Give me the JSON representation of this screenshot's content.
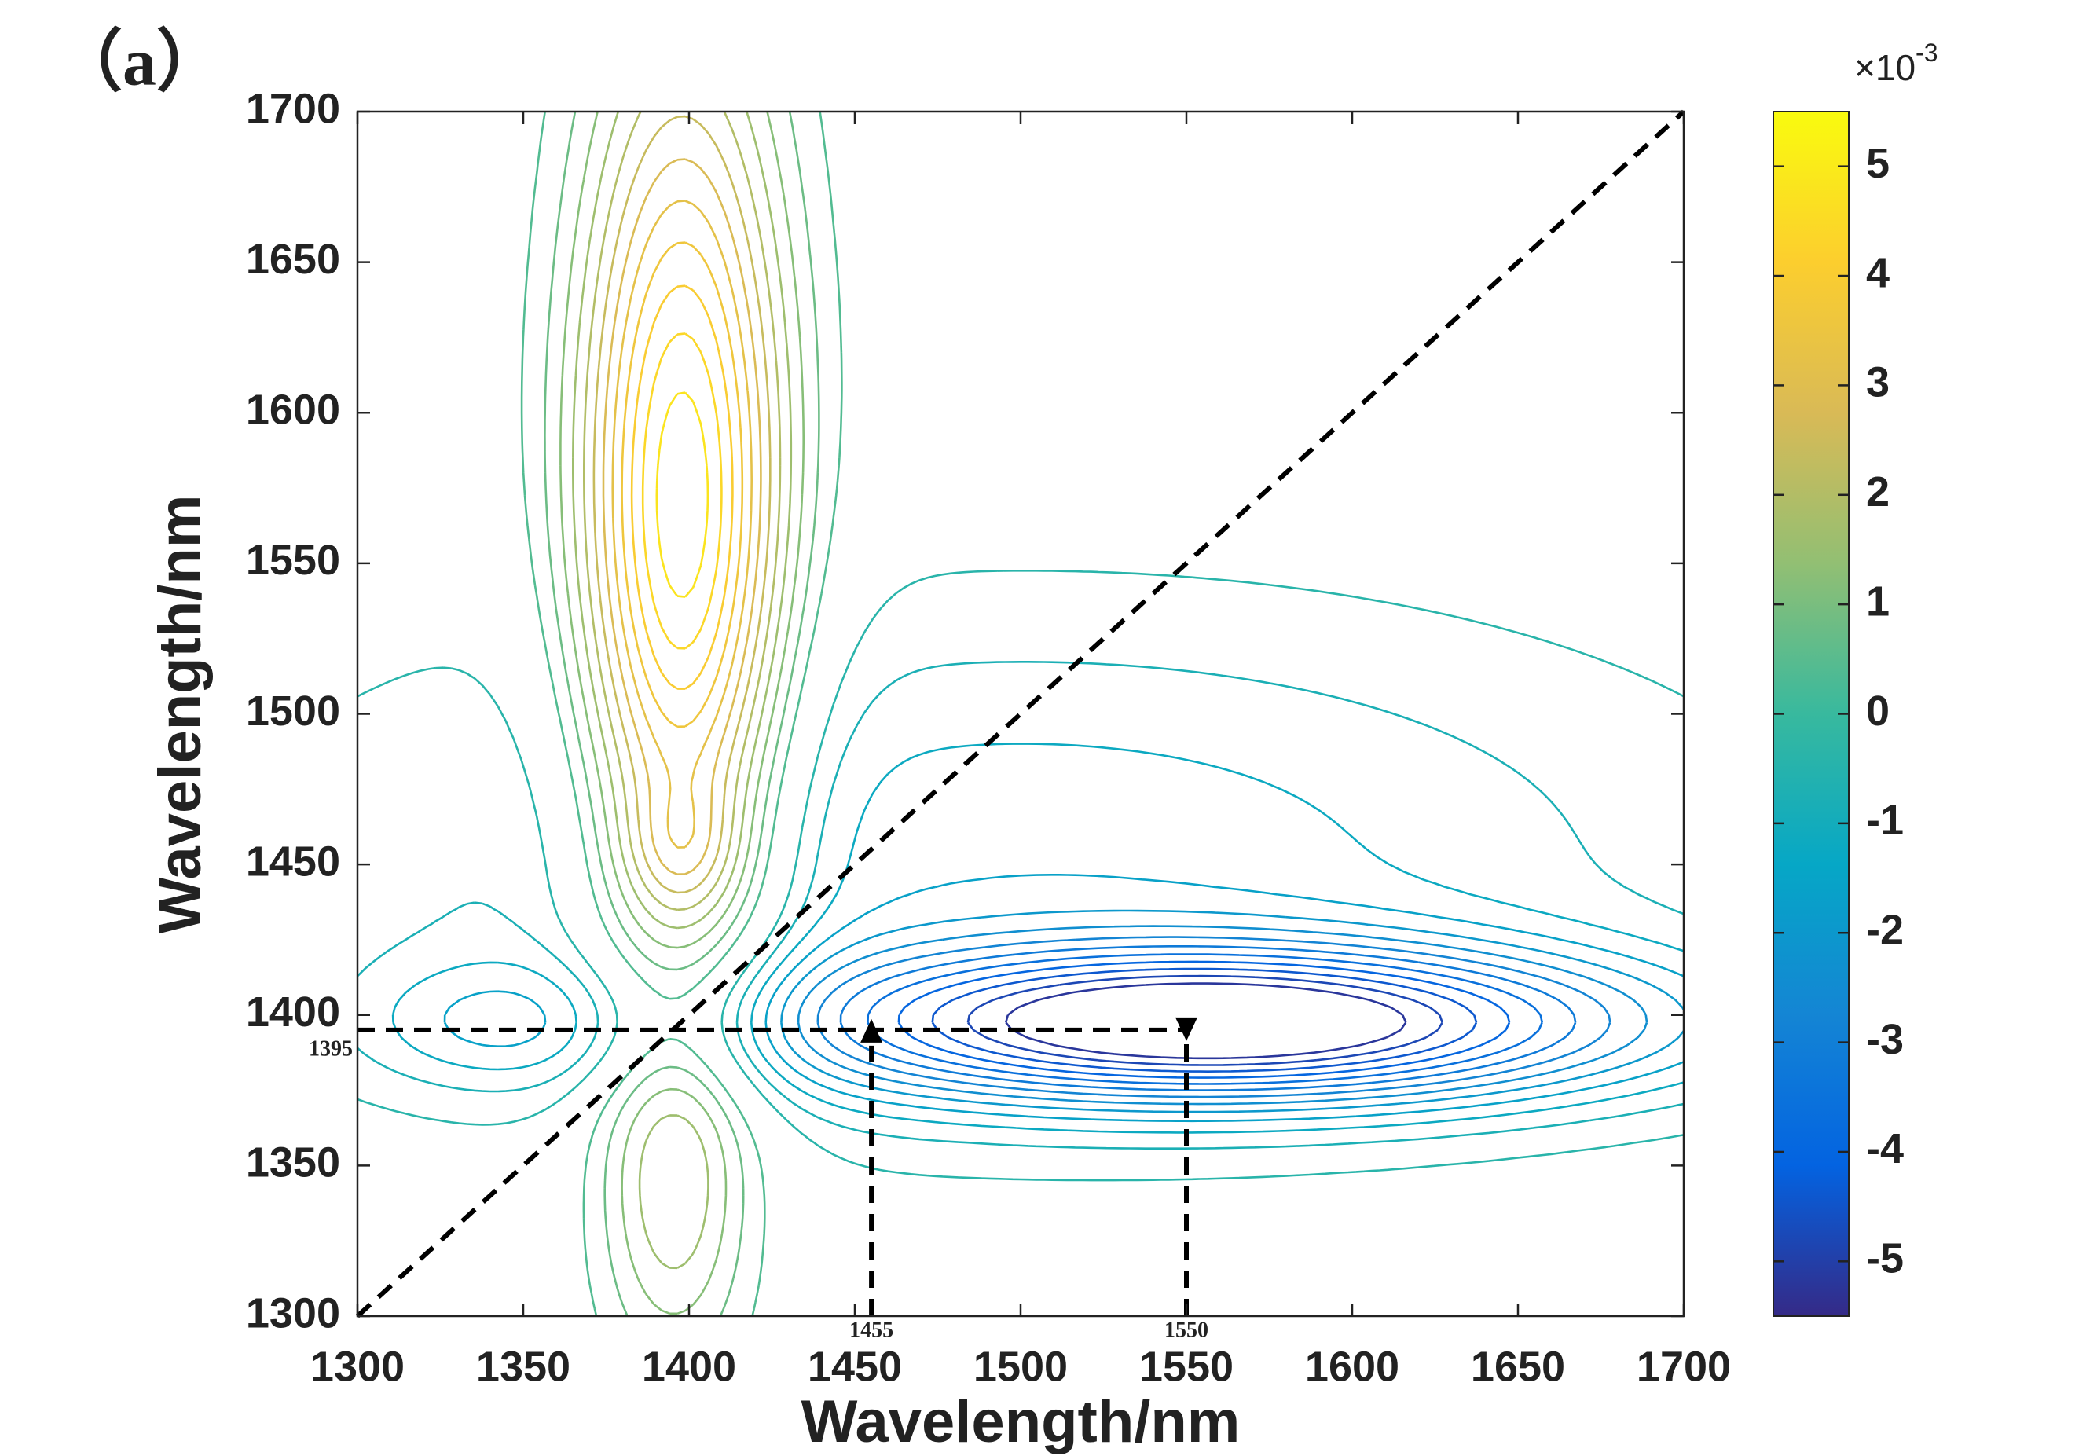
{
  "chart_data": {
    "type": "contour",
    "panel_label": "（a）",
    "xlabel": "Wavelength/nm",
    "ylabel": "Wavelength/nm",
    "xlim": [
      1300,
      1700
    ],
    "ylim": [
      1300,
      1700
    ],
    "xticks": [
      1300,
      1350,
      1400,
      1450,
      1500,
      1550,
      1600,
      1650,
      1700
    ],
    "yticks": [
      1300,
      1350,
      1400,
      1450,
      1500,
      1550,
      1600,
      1650,
      1700
    ],
    "peaks": [
      {
        "x": 1398,
        "y": 1560,
        "value": 5.3,
        "sx": 22,
        "sy": 110
      },
      {
        "x": 1398,
        "y": 1455,
        "value": 1.0,
        "sx": 12,
        "sy": 15
      },
      {
        "x": 1560,
        "y": 1397,
        "value": -5.4,
        "sx": 90,
        "sy": 18
      },
      {
        "x": 1500,
        "y": 1450,
        "value": -1.5,
        "sx": 150,
        "sy": 60
      },
      {
        "x": 1395,
        "y": 1340,
        "value": 1.5,
        "sx": 15,
        "sy": 40
      },
      {
        "x": 1340,
        "y": 1397,
        "value": -1.0,
        "sx": 30,
        "sy": 15
      }
    ],
    "levels": [
      -5.2,
      -4.8,
      -4.4,
      -4.0,
      -3.6,
      -3.2,
      -2.8,
      -2.4,
      -2.0,
      -1.6,
      -1.2,
      -0.8,
      -0.4,
      0.4,
      0.8,
      1.2,
      1.6,
      2.0,
      2.4,
      2.8,
      3.2,
      3.6,
      4.0,
      4.4,
      4.8,
      5.2
    ],
    "colormap": [
      "#352a87",
      "#0363e1",
      "#1485d4",
      "#06a7c6",
      "#38b99e",
      "#92bf73",
      "#d9ba56",
      "#fcce2e",
      "#f9fb0e"
    ],
    "clim": [
      -5.5,
      5.5
    ],
    "colorbar_ticks": [
      -5,
      -4,
      -3,
      -2,
      -1,
      0,
      1,
      2,
      3,
      4,
      5
    ],
    "colorbar_exponent": {
      "base": "×10",
      "power": "-3"
    },
    "diagonal": true,
    "guide_y": 1395,
    "guide_x": [
      1455,
      1550
    ]
  }
}
